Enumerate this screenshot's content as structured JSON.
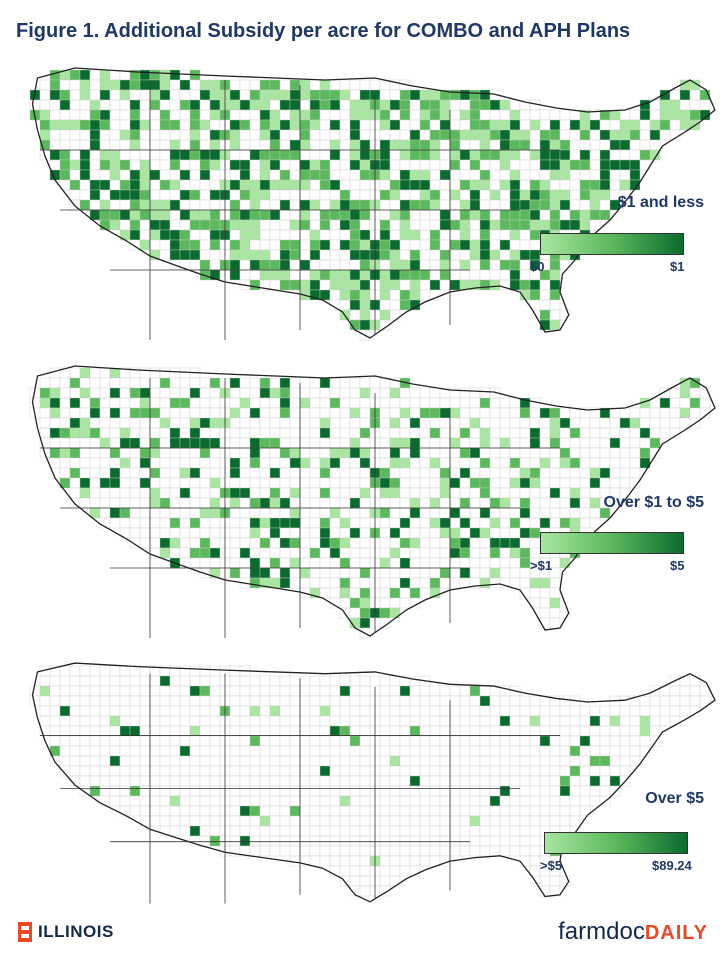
{
  "title": "Figure 1.  Additional Subsidy per acre for COMBO and APH Plans",
  "panels": [
    {
      "legend_title": "$1 and less",
      "legend_min": "$0",
      "legend_max": "$1",
      "density": 0.55
    },
    {
      "legend_title": "Over $1 to $5",
      "legend_min": ">$1",
      "legend_max": "$5",
      "density": 0.3
    },
    {
      "legend_title": "Over $5",
      "legend_min": ">$5",
      "legend_max": "$89.24",
      "density": 0.06
    }
  ],
  "colors": {
    "light": "#a8e6a1",
    "mid": "#5cb85c",
    "dark": "#0b6b2f",
    "title": "#1f3864"
  },
  "footer": {
    "university": "ILLINOIS",
    "brand_part1": "farmdoc",
    "brand_part2": "DAILY"
  }
}
